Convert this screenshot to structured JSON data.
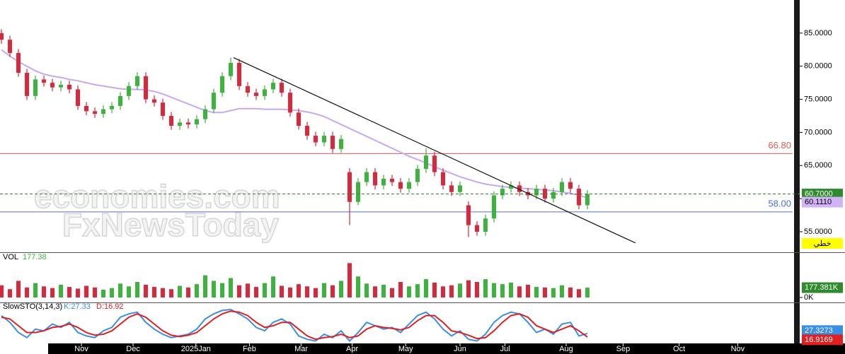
{
  "watermark": [
    "economies.com",
    "FxNewsToday"
  ],
  "mode_label": "خطي",
  "chart_data": [
    {
      "type": "candlestick",
      "xlim": [
        -0.17,
        94.0
      ],
      "ylim": [
        51.9,
        90.0
      ],
      "yticks": [
        {
          "value": 55,
          "label": "55.0000"
        },
        {
          "value": 60,
          "label": "60.0000"
        },
        {
          "value": 65,
          "label": "65.0000"
        },
        {
          "value": 70,
          "label": "70.0000"
        },
        {
          "value": 75,
          "label": "75.0000"
        },
        {
          "value": 80,
          "label": "80.0000"
        },
        {
          "value": 85,
          "label": "85.0000"
        }
      ],
      "xticks": [
        {
          "value": 9.42,
          "label": "Nov"
        },
        {
          "value": 15.5,
          "label": "Dec"
        },
        {
          "value": 22.9,
          "label": "2025Jan"
        },
        {
          "value": 29.2,
          "label": "Feb"
        },
        {
          "value": 35.3,
          "label": "Mar"
        },
        {
          "value": 41.3,
          "label": "Apr"
        },
        {
          "value": 47.6,
          "label": "May"
        },
        {
          "value": 54,
          "label": "Jun"
        },
        {
          "value": 59.3,
          "label": "Jul"
        },
        {
          "value": 66.5,
          "label": "Aug"
        },
        {
          "value": 73.2,
          "label": "Sep"
        },
        {
          "value": 79.8,
          "label": "Oct"
        },
        {
          "value": 86.7,
          "label": "Nov"
        }
      ],
      "up_color": "#3cb33c",
      "down_color": "#d9283c",
      "open": [
        85.0,
        84.0,
        82.0,
        79.0,
        75.5,
        78.0,
        77.5,
        76.8,
        77.2,
        76.5,
        74.0,
        73.2,
        72.8,
        73.5,
        74.0,
        75.5,
        77.0,
        78.5,
        75.0,
        74.5,
        72.5,
        71.0,
        71.5,
        71.2,
        72.0,
        73.5,
        76.0,
        78.5,
        80.5,
        77.0,
        76.0,
        75.5,
        76.5,
        77.5,
        76.0,
        73.0,
        71.0,
        69.5,
        68.5,
        69.5,
        67.5,
        64.0,
        59.5,
        62.5,
        64.0,
        62.0,
        63.0,
        62.5,
        61.5,
        62.5,
        64.5,
        66.5,
        64.0,
        62.0,
        61.0,
        59.0,
        56.0,
        55.0,
        57.0,
        60.5,
        61.5,
        62.0,
        61.0,
        60.5,
        61.5,
        60.0,
        61.0,
        62.5,
        61.5,
        59.0
      ],
      "high": [
        85.6,
        84.6,
        82.6,
        79.6,
        78.6,
        78.6,
        78.1,
        77.8,
        77.8,
        77.1,
        74.6,
        73.8,
        74.1,
        74.6,
        76.1,
        77.6,
        79.1,
        79.1,
        75.6,
        75.1,
        73.1,
        72.1,
        72.1,
        72.6,
        74.1,
        76.6,
        79.1,
        81.3,
        81.1,
        77.6,
        76.6,
        77.1,
        78.1,
        78.1,
        76.6,
        73.6,
        71.6,
        70.1,
        70.1,
        70.1,
        69.6,
        64.6,
        63.1,
        64.6,
        64.6,
        63.6,
        63.6,
        63.1,
        63.1,
        65.1,
        67.6,
        67.1,
        64.6,
        62.6,
        62.6,
        59.6,
        56.6,
        57.6,
        61.1,
        62.1,
        62.6,
        62.6,
        61.6,
        62.1,
        62.1,
        61.6,
        63.1,
        63.1,
        62.1,
        61.3
      ],
      "low": [
        83.4,
        81.4,
        78.4,
        74.9,
        74.9,
        76.9,
        76.2,
        76.2,
        75.9,
        73.4,
        72.6,
        72.2,
        72.2,
        72.9,
        73.4,
        74.9,
        76.4,
        74.4,
        73.9,
        71.9,
        70.4,
        70.4,
        70.6,
        70.6,
        71.4,
        72.9,
        75.4,
        77.9,
        76.4,
        75.4,
        74.9,
        74.9,
        75.9,
        75.4,
        72.4,
        70.4,
        68.9,
        67.9,
        67.9,
        66.9,
        66.9,
        56.0,
        59.0,
        61.9,
        61.4,
        61.4,
        61.9,
        60.9,
        60.9,
        61.9,
        63.9,
        63.4,
        61.4,
        60.4,
        60.4,
        54.2,
        54.4,
        54.4,
        56.4,
        59.9,
        60.9,
        60.4,
        59.9,
        59.9,
        59.4,
        59.4,
        60.4,
        60.9,
        58.4,
        58.4
      ],
      "close": [
        84.0,
        82.0,
        79.0,
        75.5,
        78.0,
        77.5,
        76.8,
        77.2,
        76.5,
        74.0,
        73.2,
        72.8,
        73.5,
        74.0,
        75.5,
        77.0,
        78.5,
        75.0,
        74.5,
        72.5,
        71.0,
        71.5,
        71.2,
        72.0,
        73.5,
        76.0,
        78.5,
        80.5,
        77.0,
        76.0,
        75.5,
        76.5,
        77.5,
        76.0,
        73.0,
        71.0,
        69.5,
        68.5,
        69.5,
        67.5,
        69.0,
        59.5,
        62.5,
        64.0,
        62.0,
        63.0,
        62.5,
        61.5,
        62.5,
        64.5,
        66.5,
        64.0,
        62.0,
        61.0,
        62.0,
        56.0,
        55.0,
        57.0,
        60.5,
        61.5,
        62.0,
        61.0,
        60.5,
        61.5,
        60.0,
        61.0,
        62.5,
        61.5,
        59.0,
        60.7
      ],
      "ma": {
        "color": "#c8a8f4",
        "values": [
          82.5,
          81.5,
          80.7,
          80.0,
          79.3,
          78.8,
          78.5,
          78.3,
          78.0,
          77.8,
          77.5,
          77.2,
          77.0,
          76.8,
          76.6,
          76.5,
          76.5,
          76.4,
          76.2,
          75.8,
          75.3,
          74.8,
          74.3,
          73.8,
          73.3,
          73.0,
          73.0,
          73.3,
          73.6,
          73.6,
          73.6,
          73.5,
          73.5,
          73.5,
          73.4,
          73.3,
          73.1,
          72.8,
          72.4,
          71.8,
          71.2,
          70.6,
          70.0,
          69.4,
          68.8,
          68.2,
          67.6,
          67.0,
          66.4,
          65.9,
          65.4,
          64.8,
          64.3,
          63.8,
          63.3,
          62.9,
          62.5,
          62.2,
          62.0,
          61.8,
          61.7,
          61.6,
          61.5,
          61.4,
          61.3,
          61.2,
          61.0,
          60.8,
          60.5,
          60.111
        ]
      },
      "levels": [
        {
          "value": 66.8,
          "label": "66.80",
          "color": "#e05a5a"
        },
        {
          "value": 58.0,
          "label": "58.00",
          "color": "#4a6ee0"
        }
      ],
      "last": {
        "value": 60.7,
        "label": "60.7000",
        "color": "#2e8b2e"
      },
      "ma_last": {
        "value": 60.111,
        "label": "60.1110",
        "color": "#d2b4f6"
      },
      "trendline": {
        "x": [
          27.33,
          74.67
        ],
        "y": [
          81.3,
          53.3
        ],
        "color": "#111111"
      }
    },
    {
      "type": "bar",
      "title": "VOL",
      "subtitle": "177.38",
      "ylim": [
        0,
        650
      ],
      "yticks": [
        {
          "value": 0,
          "label": "0K"
        }
      ],
      "values": [
        220,
        150,
        300,
        180,
        260,
        200,
        170,
        230,
        190,
        160,
        210,
        180,
        140,
        170,
        250,
        200,
        280,
        230,
        190,
        170,
        150,
        210,
        180,
        240,
        400,
        300,
        260,
        350,
        220,
        250,
        190,
        260,
        380,
        210,
        180,
        240,
        200,
        170,
        260,
        220,
        300,
        620,
        380,
        250,
        200,
        230,
        170,
        280,
        200,
        240,
        330,
        270,
        200,
        220,
        250,
        310,
        280,
        330,
        260,
        240,
        270,
        200,
        230,
        190,
        180,
        170,
        220,
        180,
        150,
        177.381
      ],
      "last": {
        "value": 177.381,
        "label": "177.381K",
        "color": "#2e8b2e"
      }
    },
    {
      "type": "line",
      "title": "SlowSTO(3,14,3)",
      "ylim": [
        0,
        100
      ],
      "series": [
        {
          "name": "K:27.33",
          "color": "#3a8ee6",
          "values": [
            80,
            60,
            30,
            15,
            40,
            35,
            55,
            45,
            60,
            30,
            20,
            15,
            35,
            45,
            75,
            85,
            90,
            60,
            40,
            25,
            15,
            20,
            25,
            40,
            70,
            85,
            95,
            98,
            85,
            70,
            45,
            35,
            60,
            70,
            55,
            20,
            10,
            5,
            25,
            15,
            35,
            5,
            30,
            60,
            50,
            40,
            45,
            30,
            55,
            80,
            90,
            70,
            40,
            20,
            35,
            10,
            5,
            25,
            60,
            80,
            90,
            85,
            60,
            30,
            40,
            25,
            55,
            60,
            20,
            27.3273
          ]
        },
        {
          "name": "D:16.92",
          "color": "#e02020",
          "values": [
            75,
            70,
            50,
            30,
            30,
            35,
            45,
            48,
            55,
            45,
            30,
            22,
            25,
            35,
            55,
            75,
            85,
            75,
            55,
            35,
            22,
            18,
            22,
            30,
            50,
            70,
            85,
            93,
            90,
            80,
            60,
            45,
            50,
            60,
            60,
            40,
            20,
            10,
            15,
            18,
            25,
            15,
            20,
            40,
            50,
            45,
            42,
            38,
            45,
            65,
            80,
            80,
            60,
            35,
            30,
            22,
            12,
            15,
            35,
            60,
            80,
            85,
            75,
            50,
            40,
            30,
            40,
            50,
            35,
            16.9169
          ]
        }
      ],
      "value_labels": [
        "27.3273",
        "16.9169"
      ]
    }
  ]
}
